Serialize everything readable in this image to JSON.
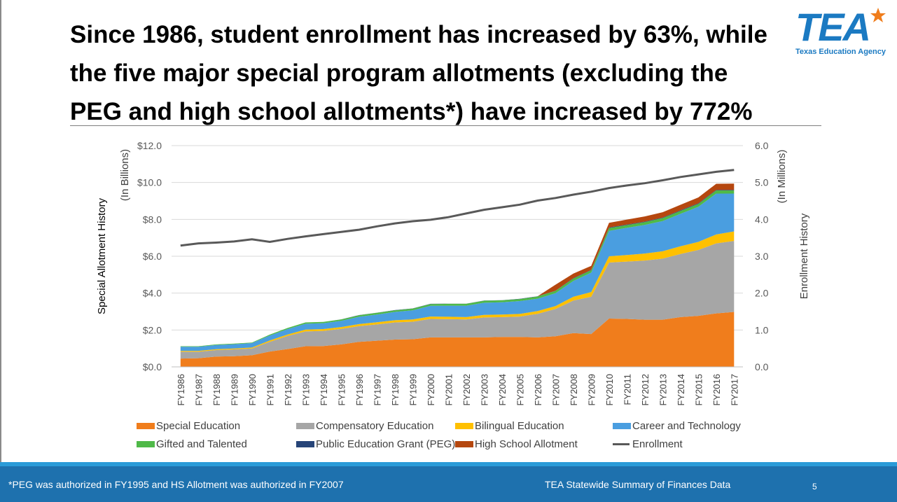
{
  "slide": {
    "title": "Since 1986, student enrollment has increased by 63%, while the five major special program allotments (excluding the PEG and high school allotments*) have increased by 772%",
    "footnote": "*PEG was authorized in FY1995 and HS Allotment was authorized in FY2007",
    "source": "TEA Statewide Summary of Finances Data",
    "page_number": "5"
  },
  "logo": {
    "wordmark": "TEA",
    "subtitle": "Texas Education Agency",
    "color": "#1b7ac2"
  },
  "chart_data": {
    "type": "area",
    "categories": [
      "FY1986",
      "FY1987",
      "FY1988",
      "FY1989",
      "FY1990",
      "FY1991",
      "FY1992",
      "FY1993",
      "FY1994",
      "FY1995",
      "FY1996",
      "FY1997",
      "FY1998",
      "FY1999",
      "FY2000",
      "FY2001",
      "FY2002",
      "FY2003",
      "FY2004",
      "FY2005",
      "FY2006",
      "FY2007",
      "FY2008",
      "FY2009",
      "FY2010",
      "FY2011",
      "FY2012",
      "FY2013",
      "FY2014",
      "FY2015",
      "FY2016",
      "FY2017"
    ],
    "ylabel_left": "Special Allotment History",
    "ylabel_left_units": "(In Billions)",
    "ylabel_right": "Enrollment History",
    "ylabel_right_units": "(In Millions)",
    "ylim_left": [
      0,
      12
    ],
    "ylim_right": [
      0,
      6
    ],
    "yticks_left": [
      "$0.0",
      "$2.0",
      "$4.0",
      "$6.0",
      "$8.0",
      "$10.0",
      "$12.0"
    ],
    "yticks_right": [
      "0.0",
      "1.0",
      "2.0",
      "3.0",
      "4.0",
      "5.0",
      "6.0"
    ],
    "grid": true,
    "legend_position": "bottom",
    "stacked": true,
    "series": [
      {
        "name": "Special Education",
        "color": "#f07d1c",
        "axis": "left",
        "values": [
          0.45,
          0.47,
          0.56,
          0.58,
          0.63,
          0.83,
          0.97,
          1.12,
          1.13,
          1.22,
          1.36,
          1.42,
          1.48,
          1.5,
          1.6,
          1.6,
          1.6,
          1.6,
          1.62,
          1.62,
          1.6,
          1.66,
          1.83,
          1.78,
          2.62,
          2.6,
          2.56,
          2.56,
          2.7,
          2.77,
          2.9,
          2.98
        ]
      },
      {
        "name": "Compensatory Education",
        "color": "#a6a6a6",
        "axis": "left",
        "values": [
          0.37,
          0.35,
          0.35,
          0.37,
          0.37,
          0.53,
          0.71,
          0.8,
          0.82,
          0.84,
          0.85,
          0.88,
          0.93,
          0.95,
          1.0,
          0.99,
          0.97,
          1.08,
          1.08,
          1.11,
          1.28,
          1.48,
          1.77,
          2.02,
          3.04,
          3.11,
          3.21,
          3.31,
          3.42,
          3.57,
          3.8,
          3.85
        ]
      },
      {
        "name": "Bilingual Education",
        "color": "#ffc000",
        "axis": "left",
        "values": [
          0.05,
          0.05,
          0.05,
          0.05,
          0.05,
          0.07,
          0.08,
          0.1,
          0.1,
          0.1,
          0.11,
          0.12,
          0.12,
          0.12,
          0.13,
          0.13,
          0.13,
          0.14,
          0.14,
          0.14,
          0.15,
          0.16,
          0.2,
          0.26,
          0.34,
          0.36,
          0.38,
          0.4,
          0.42,
          0.44,
          0.48,
          0.52
        ]
      },
      {
        "name": "Career and Technology",
        "color": "#4a9ee0",
        "axis": "left",
        "values": [
          0.22,
          0.22,
          0.23,
          0.23,
          0.24,
          0.27,
          0.29,
          0.32,
          0.32,
          0.34,
          0.4,
          0.42,
          0.45,
          0.5,
          0.58,
          0.6,
          0.62,
          0.66,
          0.66,
          0.7,
          0.67,
          0.7,
          0.86,
          1.05,
          1.38,
          1.47,
          1.55,
          1.64,
          1.76,
          1.9,
          2.22,
          2.05
        ]
      },
      {
        "name": "Gifted and Talented",
        "color": "#4fb948",
        "axis": "left",
        "values": [
          0.03,
          0.03,
          0.03,
          0.03,
          0.03,
          0.05,
          0.06,
          0.07,
          0.07,
          0.07,
          0.08,
          0.09,
          0.09,
          0.09,
          0.1,
          0.1,
          0.1,
          0.11,
          0.11,
          0.11,
          0.12,
          0.12,
          0.13,
          0.13,
          0.15,
          0.15,
          0.15,
          0.16,
          0.16,
          0.16,
          0.17,
          0.17
        ]
      },
      {
        "name": "Public Education Grant (PEG)",
        "color": "#264478",
        "axis": "left",
        "values": [
          0,
          0,
          0,
          0,
          0,
          0,
          0,
          0,
          0,
          0.01,
          0.01,
          0.01,
          0.01,
          0.01,
          0.01,
          0.01,
          0.01,
          0.01,
          0.01,
          0.01,
          0.01,
          0.01,
          0.02,
          0.02,
          0.03,
          0.03,
          0.03,
          0.03,
          0.03,
          0.03,
          0.03,
          0.03
        ]
      },
      {
        "name": "High School Allotment",
        "color": "#b5470f",
        "axis": "left",
        "values": [
          0,
          0,
          0,
          0,
          0,
          0,
          0,
          0,
          0,
          0,
          0,
          0,
          0,
          0,
          0,
          0,
          0,
          0,
          0,
          0,
          0,
          0.33,
          0.25,
          0.22,
          0.25,
          0.27,
          0.28,
          0.29,
          0.3,
          0.32,
          0.33,
          0.34
        ]
      },
      {
        "name": "Enrollment",
        "color": "#595959",
        "axis": "right",
        "type": "line",
        "values": [
          3.29,
          3.35,
          3.37,
          3.4,
          3.46,
          3.39,
          3.47,
          3.54,
          3.6,
          3.66,
          3.72,
          3.81,
          3.89,
          3.95,
          3.99,
          4.06,
          4.16,
          4.26,
          4.33,
          4.4,
          4.51,
          4.58,
          4.67,
          4.75,
          4.85,
          4.92,
          4.98,
          5.06,
          5.15,
          5.22,
          5.29,
          5.34
        ]
      }
    ]
  }
}
